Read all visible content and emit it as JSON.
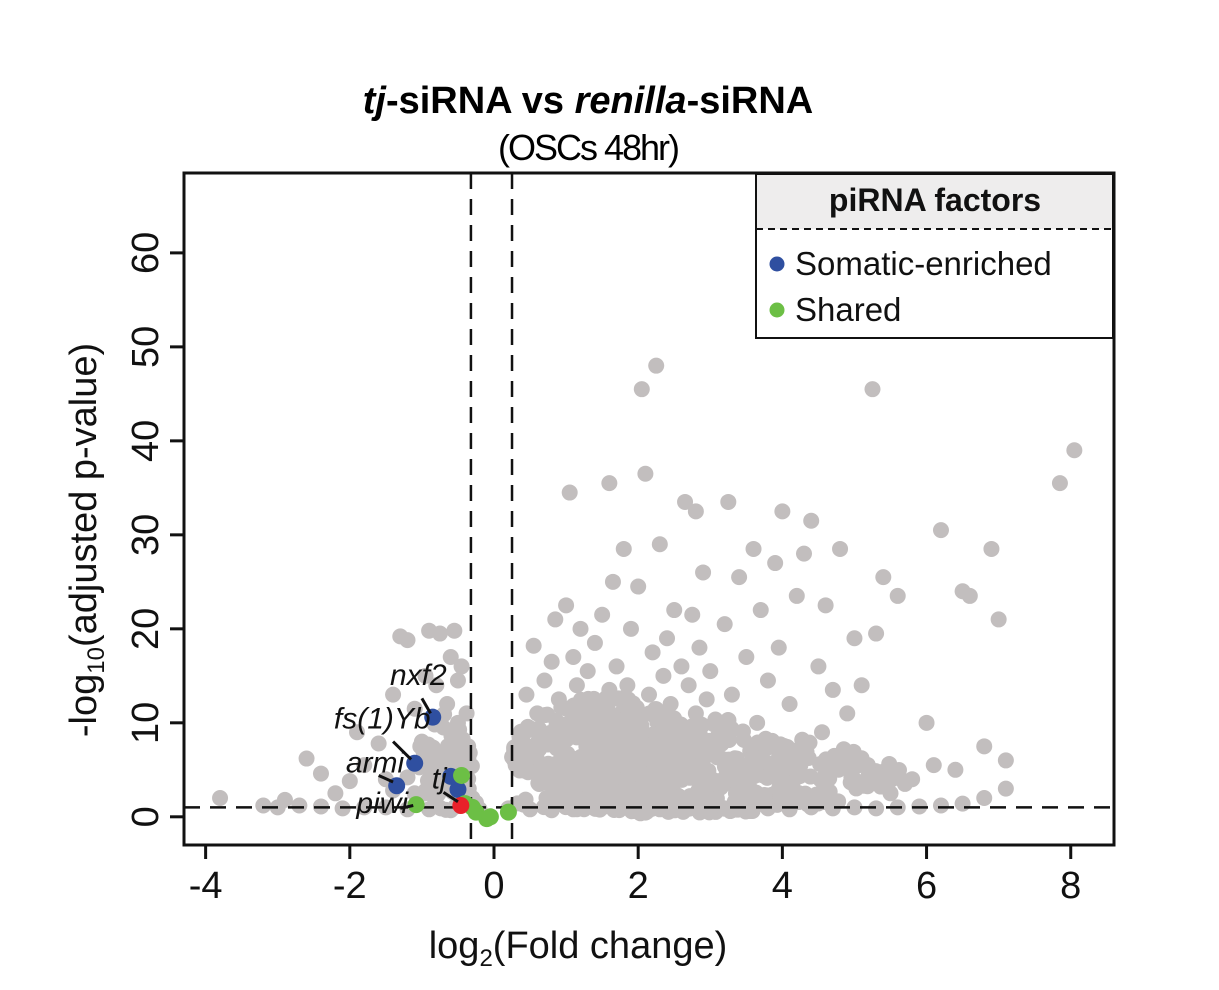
{
  "chart_data": {
    "type": "scatter",
    "title": {
      "part1_italic": "tj",
      "part2": "-siRNA vs ",
      "part3_italic": "renilla",
      "part4": "-siRNA"
    },
    "subtitle": "(OSCs 48hr)",
    "xlabel": {
      "main": "log",
      "sub": "2",
      "rest": "(Fold change)"
    },
    "ylabel": {
      "main": "-log",
      "sub": "10",
      "rest": "(adjusted p-value)"
    },
    "xlim": [
      -4.3,
      8.6
    ],
    "ylim": [
      -3,
      68.5
    ],
    "xticks": [
      {
        "value": -4,
        "label": "-4"
      },
      {
        "value": -2,
        "label": "-2"
      },
      {
        "value": 0,
        "label": "0"
      },
      {
        "value": 2,
        "label": "2"
      },
      {
        "value": 4,
        "label": "4"
      },
      {
        "value": 6,
        "label": "6"
      },
      {
        "value": 8,
        "label": "8"
      }
    ],
    "yticks": [
      {
        "value": 0,
        "label": "0"
      },
      {
        "value": 10,
        "label": "10"
      },
      {
        "value": 20,
        "label": "20"
      },
      {
        "value": 30,
        "label": "30"
      },
      {
        "value": 40,
        "label": "40"
      },
      {
        "value": 50,
        "label": "50"
      },
      {
        "value": 60,
        "label": "60"
      }
    ],
    "thresholds": {
      "x": [
        -0.32,
        0.25
      ],
      "y": 1
    },
    "legend": {
      "title": "piRNA factors",
      "position": "top-right",
      "entries": [
        {
          "name": "Somatic-enriched",
          "color": "#2f4fa0"
        },
        {
          "name": "Shared",
          "color": "#6cbf45"
        }
      ]
    },
    "colors": {
      "background_genes": "#c2bebe",
      "somatic_enriched": "#2f4fa0",
      "shared": "#6cbf45",
      "tj": "#e8212a"
    },
    "background_points": [
      [
        -3.8,
        2.0
      ],
      [
        -3.2,
        1.2
      ],
      [
        -2.9,
        1.8
      ],
      [
        -2.6,
        6.2
      ],
      [
        -2.4,
        4.6
      ],
      [
        -2.2,
        2.5
      ],
      [
        -2.0,
        3.8
      ],
      [
        -1.9,
        9.0
      ],
      [
        -1.8,
        5.5
      ],
      [
        -1.6,
        7.8
      ],
      [
        -1.5,
        4.0
      ],
      [
        -1.4,
        13.0
      ],
      [
        -1.3,
        19.2
      ],
      [
        -1.2,
        18.8
      ],
      [
        -1.1,
        11.5
      ],
      [
        -1.0,
        8.0
      ],
      [
        -0.95,
        15.0
      ],
      [
        -0.9,
        19.8
      ],
      [
        -0.8,
        14.0
      ],
      [
        -0.75,
        19.5
      ],
      [
        -0.7,
        9.5
      ],
      [
        -0.65,
        12.0
      ],
      [
        -0.6,
        17.0
      ],
      [
        -0.55,
        19.8
      ],
      [
        -0.5,
        14.5
      ],
      [
        -0.5,
        10.0
      ],
      [
        -0.45,
        7.0
      ],
      [
        -0.45,
        16.0
      ],
      [
        -0.4,
        5.5
      ],
      [
        -0.38,
        11.0
      ],
      [
        -0.35,
        3.0
      ],
      [
        -0.3,
        2.0
      ],
      [
        -0.25,
        1.5
      ],
      [
        -0.2,
        0.8
      ],
      [
        0.3,
        5.5
      ],
      [
        0.4,
        9.0
      ],
      [
        0.45,
        13.0
      ],
      [
        0.5,
        7.0
      ],
      [
        0.55,
        18.2
      ],
      [
        0.6,
        11.0
      ],
      [
        0.7,
        14.5
      ],
      [
        0.75,
        8.0
      ],
      [
        0.8,
        16.5
      ],
      [
        0.85,
        21.0
      ],
      [
        0.9,
        12.5
      ],
      [
        0.95,
        6.5
      ],
      [
        1.0,
        22.5
      ],
      [
        1.05,
        10.0
      ],
      [
        1.1,
        17.0
      ],
      [
        1.15,
        14.0
      ],
      [
        1.2,
        20.0
      ],
      [
        1.25,
        8.5
      ],
      [
        1.3,
        15.5
      ],
      [
        1.35,
        12.0
      ],
      [
        1.4,
        18.5
      ],
      [
        1.45,
        7.5
      ],
      [
        1.5,
        21.5
      ],
      [
        1.55,
        11.0
      ],
      [
        1.6,
        13.5
      ],
      [
        1.65,
        25.0
      ],
      [
        1.7,
        16.0
      ],
      [
        1.75,
        9.5
      ],
      [
        1.8,
        28.5
      ],
      [
        1.85,
        14.0
      ],
      [
        1.9,
        20.0
      ],
      [
        1.95,
        11.5
      ],
      [
        2.0,
        24.5
      ],
      [
        2.05,
        8.0
      ],
      [
        2.1,
        36.5
      ],
      [
        2.15,
        13.0
      ],
      [
        2.2,
        17.5
      ],
      [
        2.25,
        10.5
      ],
      [
        2.3,
        29.0
      ],
      [
        2.35,
        15.0
      ],
      [
        2.4,
        19.0
      ],
      [
        2.45,
        12.0
      ],
      [
        2.5,
        22.0
      ],
      [
        2.55,
        9.0
      ],
      [
        2.6,
        16.0
      ],
      [
        2.65,
        33.5
      ],
      [
        2.7,
        14.0
      ],
      [
        2.75,
        21.5
      ],
      [
        2.8,
        11.0
      ],
      [
        2.85,
        18.0
      ],
      [
        2.9,
        26.0
      ],
      [
        2.95,
        12.5
      ],
      [
        3.0,
        15.5
      ],
      [
        3.1,
        8.5
      ],
      [
        3.2,
        20.5
      ],
      [
        3.25,
        33.5
      ],
      [
        3.3,
        13.0
      ],
      [
        3.4,
        25.5
      ],
      [
        3.5,
        17.0
      ],
      [
        3.6,
        28.5
      ],
      [
        3.65,
        10.0
      ],
      [
        3.7,
        22.0
      ],
      [
        3.8,
        14.5
      ],
      [
        3.9,
        27.0
      ],
      [
        3.95,
        18.0
      ],
      [
        4.0,
        32.5
      ],
      [
        4.1,
        12.0
      ],
      [
        4.2,
        23.5
      ],
      [
        4.3,
        28.0
      ],
      [
        4.4,
        31.5
      ],
      [
        4.5,
        16.0
      ],
      [
        4.55,
        9.0
      ],
      [
        4.6,
        22.5
      ],
      [
        4.7,
        13.5
      ],
      [
        4.8,
        28.5
      ],
      [
        4.9,
        11.0
      ],
      [
        5.0,
        19.0
      ],
      [
        5.1,
        14.0
      ],
      [
        5.2,
        4.5
      ],
      [
        5.3,
        19.5
      ],
      [
        5.4,
        25.5
      ],
      [
        5.5,
        2.5
      ],
      [
        5.6,
        23.5
      ],
      [
        5.7,
        3.5
      ],
      [
        5.8,
        4.0
      ],
      [
        6.0,
        10.0
      ],
      [
        6.1,
        5.5
      ],
      [
        6.2,
        30.5
      ],
      [
        6.4,
        5.0
      ],
      [
        6.5,
        24.0
      ],
      [
        6.6,
        23.5
      ],
      [
        6.8,
        7.5
      ],
      [
        6.9,
        28.5
      ],
      [
        7.0,
        21.0
      ],
      [
        7.1,
        6.0
      ],
      [
        1.6,
        35.5
      ],
      [
        2.05,
        45.5
      ],
      [
        2.25,
        48.0
      ],
      [
        5.25,
        45.5
      ],
      [
        2.8,
        32.5
      ],
      [
        1.05,
        34.5
      ],
      [
        7.85,
        35.5
      ],
      [
        8.05,
        39.0
      ],
      [
        0.2,
        0.9
      ],
      [
        0.5,
        0.8
      ],
      [
        0.8,
        0.7
      ],
      [
        1.1,
        0.8
      ],
      [
        1.4,
        0.9
      ],
      [
        1.7,
        0.8
      ],
      [
        2.0,
        0.7
      ],
      [
        2.3,
        0.8
      ],
      [
        2.6,
        0.9
      ],
      [
        2.9,
        0.8
      ],
      [
        3.2,
        0.9
      ],
      [
        3.5,
        0.8
      ],
      [
        3.8,
        0.9
      ],
      [
        4.1,
        0.8
      ],
      [
        4.4,
        1.0
      ],
      [
        4.7,
        0.9
      ],
      [
        5.0,
        1.0
      ],
      [
        5.3,
        0.9
      ],
      [
        5.6,
        1.0
      ],
      [
        5.9,
        1.1
      ],
      [
        6.2,
        1.2
      ],
      [
        6.5,
        1.4
      ],
      [
        6.8,
        2.0
      ],
      [
        7.1,
        3.0
      ],
      [
        -1.2,
        0.8
      ],
      [
        -1.5,
        1.0
      ],
      [
        -1.8,
        1.0
      ],
      [
        -2.1,
        0.9
      ],
      [
        -2.4,
        1.1
      ],
      [
        -2.7,
        1.2
      ],
      [
        -3.0,
        1.0
      ],
      [
        -0.9,
        0.8
      ],
      [
        -0.6,
        0.7
      ],
      [
        -1.1,
        2.5
      ],
      [
        -1.4,
        2.8
      ],
      [
        -0.7,
        3.0
      ],
      [
        -0.5,
        4.0
      ],
      [
        -0.9,
        5.0
      ],
      [
        -1.2,
        4.2
      ]
    ],
    "clouds": [
      {
        "cx": 1.6,
        "cy": 7.0,
        "rx": 1.45,
        "ry": 6.5,
        "count": 360
      },
      {
        "cx": 2.9,
        "cy": 6.0,
        "rx": 1.4,
        "ry": 5.0,
        "count": 150
      },
      {
        "cx": 4.3,
        "cy": 4.5,
        "rx": 1.4,
        "ry": 3.8,
        "count": 90
      },
      {
        "cx": -0.7,
        "cy": 5.5,
        "rx": 0.4,
        "ry": 6.0,
        "count": 80
      },
      {
        "cx": 2.5,
        "cy": 1.6,
        "rx": 2.3,
        "ry": 1.4,
        "count": 180
      }
    ],
    "highlighted": [
      {
        "gene": "nxf2",
        "x": -0.85,
        "y": 10.6,
        "group": "Somatic-enriched"
      },
      {
        "gene": "fs(1)Yb",
        "x": -1.1,
        "y": 5.7,
        "group": "Somatic-enriched"
      },
      {
        "gene": "armi",
        "x": -1.35,
        "y": 3.3,
        "group": "Somatic-enriched"
      },
      {
        "gene": "",
        "x": -0.6,
        "y": 4.3,
        "group": "Somatic-enriched"
      },
      {
        "gene": "",
        "x": -0.5,
        "y": 2.9,
        "group": "Somatic-enriched"
      },
      {
        "gene": "piwi",
        "x": -1.08,
        "y": 1.3,
        "group": "Shared"
      },
      {
        "gene": "",
        "x": -0.45,
        "y": 4.4,
        "group": "Shared"
      },
      {
        "gene": "",
        "x": -0.4,
        "y": 1.4,
        "group": "Shared"
      },
      {
        "gene": "",
        "x": -0.3,
        "y": 1.0,
        "group": "Shared"
      },
      {
        "gene": "",
        "x": -0.25,
        "y": 0.5,
        "group": "Shared"
      },
      {
        "gene": "",
        "x": -0.1,
        "y": -0.2,
        "group": "Shared"
      },
      {
        "gene": "",
        "x": -0.05,
        "y": 0.0,
        "group": "Shared"
      },
      {
        "gene": "",
        "x": 0.2,
        "y": 0.5,
        "group": "Shared"
      },
      {
        "gene": "tj",
        "x": -0.46,
        "y": 1.2,
        "group": "tj"
      }
    ],
    "labels": [
      {
        "text": "nxf2",
        "tx": -1.05,
        "ty": 14.0,
        "lx1": -1.0,
        "ly1": 12.6,
        "lx2": -0.88,
        "ly2": 11.0
      },
      {
        "text": "fs(1)Yb",
        "tx": -1.55,
        "ty": 9.4,
        "lx1": -1.4,
        "ly1": 8.0,
        "lx2": -1.15,
        "ly2": 6.1
      },
      {
        "text": "armi",
        "tx": -1.65,
        "ty": 4.7,
        "lx1": -1.6,
        "ly1": 4.4,
        "lx2": -1.4,
        "ly2": 3.7
      },
      {
        "text": "tj",
        "tx": -0.76,
        "ty": 3.0,
        "lx1": -0.7,
        "ly1": 2.6,
        "lx2": -0.5,
        "ly2": 1.6
      },
      {
        "text": "piwi",
        "tx": -1.55,
        "ty": 0.4,
        "lx1": -1.3,
        "ly1": 0.9,
        "lx2": -1.12,
        "ly2": 1.2
      }
    ]
  }
}
